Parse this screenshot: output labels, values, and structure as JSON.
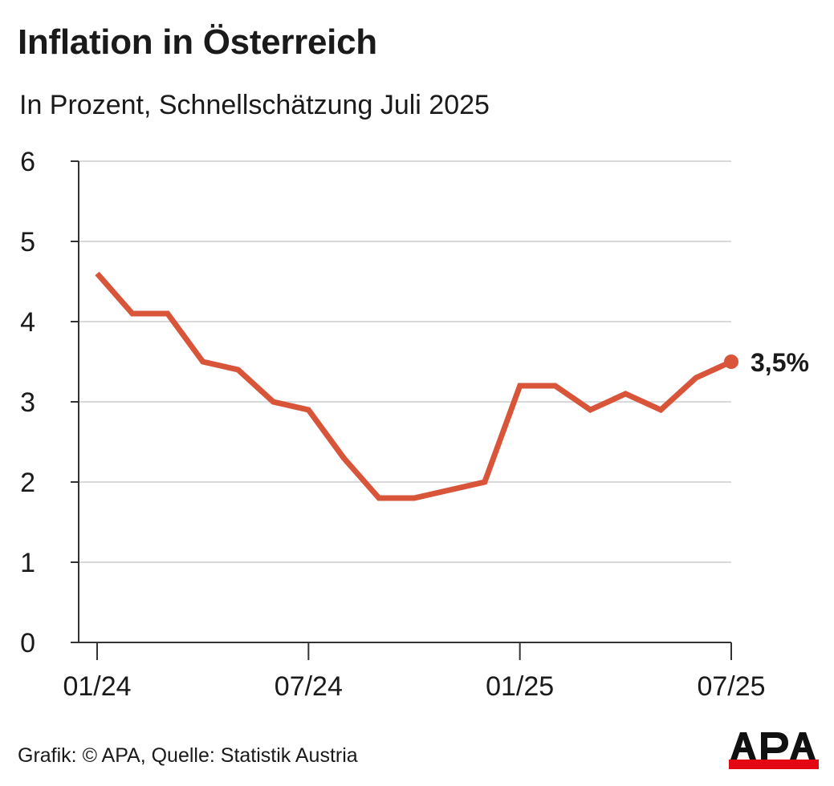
{
  "header": {
    "title": "Inflation in Österreich",
    "subtitle": "In Prozent, Schnellschätzung Juli 2025"
  },
  "footer": {
    "source": "Grafik: © APA, Quelle: Statistik Austria",
    "logo_text": "APA"
  },
  "colors": {
    "line": "#d9553a",
    "grid": "#d9d9d9",
    "axis": "#333333",
    "logo_red": "#e30613"
  },
  "chart_data": {
    "type": "line",
    "title": "Inflation in Österreich",
    "subtitle": "In Prozent, Schnellschätzung Juli 2025",
    "x": [
      "2024-01",
      "2024-02",
      "2024-03",
      "2024-04",
      "2024-05",
      "2024-06",
      "2024-07",
      "2024-08",
      "2024-09",
      "2024-10",
      "2024-11",
      "2024-12",
      "2025-01",
      "2025-02",
      "2025-03",
      "2025-04",
      "2025-05",
      "2025-06",
      "2025-07"
    ],
    "series": [
      {
        "values": [
          4.6,
          4.1,
          4.1,
          3.5,
          3.4,
          3.0,
          2.9,
          2.3,
          1.8,
          1.8,
          1.9,
          2.0,
          3.2,
          3.2,
          2.9,
          3.1,
          2.9,
          3.3,
          3.5
        ]
      }
    ],
    "ylim": [
      0,
      6
    ],
    "yticks": [
      "0",
      "1",
      "2",
      "3",
      "4",
      "5",
      "6"
    ],
    "xtick_labels": [
      {
        "index": 0,
        "label": "01/24"
      },
      {
        "index": 6,
        "label": "07/24"
      },
      {
        "index": 12,
        "label": "01/25"
      },
      {
        "index": 18,
        "label": "07/25"
      }
    ],
    "end_label": "3,5%",
    "grid": true,
    "xlabel": "",
    "ylabel": ""
  }
}
